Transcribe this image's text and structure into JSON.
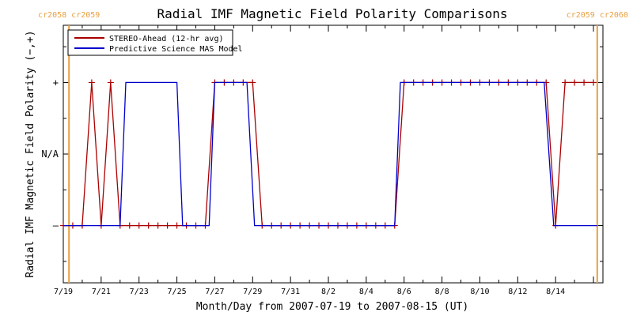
{
  "chart_data": {
    "type": "line",
    "title": "Radial IMF Magnetic Field Polarity Comparisons",
    "xlabel": "Month/Day from 2007-07-19 to 2007-08-15 (UT)",
    "ylabel": "Radial IMF Magnetic Field Polarity (−,+)",
    "x_start": "2007-07-19",
    "x_end": "2007-08-15",
    "xlim_days": [
      0,
      28.5
    ],
    "ylim": [
      -1.8,
      1.8
    ],
    "y_levels": [
      {
        "value": 1,
        "label": "+"
      },
      {
        "value": 0,
        "label": "N/A"
      },
      {
        "value": -1,
        "label": "–"
      }
    ],
    "x_ticks": [
      {
        "day": 0,
        "label": "7/19"
      },
      {
        "day": 2,
        "label": "7/21"
      },
      {
        "day": 4,
        "label": "7/23"
      },
      {
        "day": 6,
        "label": "7/25"
      },
      {
        "day": 8,
        "label": "7/27"
      },
      {
        "day": 10,
        "label": "7/29"
      },
      {
        "day": 12,
        "label": "7/31"
      },
      {
        "day": 14,
        "label": "8/2"
      },
      {
        "day": 16,
        "label": "8/4"
      },
      {
        "day": 18,
        "label": "8/6"
      },
      {
        "day": 20,
        "label": "8/8"
      },
      {
        "day": 22,
        "label": "8/10"
      },
      {
        "day": 24,
        "label": "8/12"
      },
      {
        "day": 26,
        "label": "8/14"
      }
    ],
    "carrington_markers": [
      {
        "day": 0.3,
        "label_left": "cr2058",
        "label_right": "cr2059",
        "color": "#e8a040"
      },
      {
        "day": 28.2,
        "label_left": "cr2059",
        "label_right": "cr2060",
        "color": "#e8a040"
      }
    ],
    "series": [
      {
        "name": "STEREO-Ahead (12-hr avg)",
        "color": "#aa0000",
        "markers": true,
        "points": [
          [
            0,
            -1
          ],
          [
            0.5,
            -1
          ],
          [
            1,
            -1
          ],
          [
            1.5,
            1
          ],
          [
            2,
            -1
          ],
          [
            2.5,
            1
          ],
          [
            3,
            -1
          ],
          [
            3.5,
            -1
          ],
          [
            4,
            -1
          ],
          [
            4.5,
            -1
          ],
          [
            5,
            -1
          ],
          [
            5.5,
            -1
          ],
          [
            6,
            -1
          ],
          [
            6.5,
            -1
          ],
          [
            7,
            -1
          ],
          [
            7.5,
            -1
          ],
          [
            8,
            1
          ],
          [
            8.5,
            1
          ],
          [
            9,
            1
          ],
          [
            9.5,
            1
          ],
          [
            10,
            1
          ],
          [
            10.5,
            -1
          ],
          [
            11,
            -1
          ],
          [
            11.5,
            -1
          ],
          [
            12,
            -1
          ],
          [
            12.5,
            -1
          ],
          [
            13,
            -1
          ],
          [
            13.5,
            -1
          ],
          [
            14,
            -1
          ],
          [
            14.5,
            -1
          ],
          [
            15,
            -1
          ],
          [
            15.5,
            -1
          ],
          [
            16,
            -1
          ],
          [
            16.5,
            -1
          ],
          [
            17,
            -1
          ],
          [
            17.5,
            -1
          ],
          [
            18,
            1
          ],
          [
            18.5,
            1
          ],
          [
            19,
            1
          ],
          [
            19.5,
            1
          ],
          [
            20,
            1
          ],
          [
            20.5,
            1
          ],
          [
            21,
            1
          ],
          [
            21.5,
            1
          ],
          [
            22,
            1
          ],
          [
            22.5,
            1
          ],
          [
            23,
            1
          ],
          [
            23.5,
            1
          ],
          [
            24,
            1
          ],
          [
            24.5,
            1
          ],
          [
            25,
            1
          ],
          [
            25.5,
            1
          ],
          [
            26,
            -1
          ],
          [
            26.5,
            1
          ],
          [
            27,
            1
          ],
          [
            27.5,
            1
          ],
          [
            28,
            1
          ]
        ]
      },
      {
        "name": "Predictive Science MAS Model",
        "color": "#0000cc",
        "markers": false,
        "points": [
          [
            0,
            -1
          ],
          [
            3,
            -1
          ],
          [
            3.3,
            1
          ],
          [
            6,
            1
          ],
          [
            6.3,
            -1
          ],
          [
            7.7,
            -1
          ],
          [
            8,
            1
          ],
          [
            9.7,
            1
          ],
          [
            10.1,
            -1
          ],
          [
            17.5,
            -1
          ],
          [
            17.8,
            1
          ],
          [
            25.4,
            1
          ],
          [
            25.9,
            -1
          ],
          [
            28.2,
            -1
          ]
        ]
      }
    ],
    "legend_position": "top-left",
    "grid": false
  }
}
